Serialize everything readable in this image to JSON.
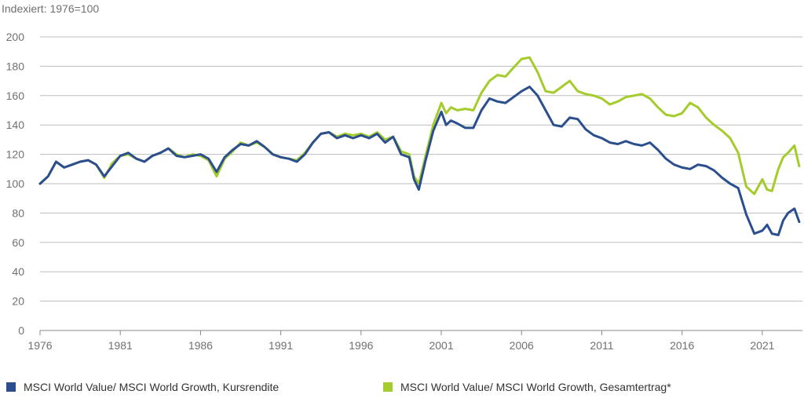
{
  "chart_data": {
    "type": "line",
    "title": "",
    "ylabel": "Indexiert: 1976=100",
    "xlabel": "",
    "ylim": [
      0,
      200
    ],
    "xlim": [
      1976,
      2023.5
    ],
    "y_ticks": [
      0,
      20,
      40,
      60,
      80,
      100,
      120,
      140,
      160,
      180,
      200
    ],
    "x_ticks": [
      1976,
      1981,
      1986,
      1991,
      1996,
      2001,
      2006,
      2011,
      2016,
      2021
    ],
    "grid": "horizontal",
    "legend_position": "bottom",
    "series": [
      {
        "name": "MSCI World Value/ MSCI World Growth, Kursrendite",
        "color": "#2b4f8e",
        "x": [
          1976,
          1976.5,
          1977,
          1977.5,
          1978,
          1978.5,
          1979,
          1979.5,
          1980,
          1980.5,
          1981,
          1981.5,
          1982,
          1982.5,
          1983,
          1983.5,
          1984,
          1984.5,
          1985,
          1985.5,
          1986,
          1986.5,
          1987,
          1987.5,
          1988,
          1988.5,
          1989,
          1989.5,
          1990,
          1990.5,
          1991,
          1991.5,
          1992,
          1992.5,
          1993,
          1993.5,
          1994,
          1994.5,
          1995,
          1995.5,
          1996,
          1996.5,
          1997,
          1997.5,
          1998,
          1998.5,
          1999,
          1999.3,
          1999.6,
          2000,
          2000.5,
          2001,
          2001.3,
          2001.6,
          2002,
          2002.5,
          2003,
          2003.5,
          2004,
          2004.5,
          2005,
          2005.5,
          2006,
          2006.5,
          2007,
          2007.5,
          2008,
          2008.5,
          2009,
          2009.5,
          2010,
          2010.5,
          2011,
          2011.5,
          2012,
          2012.5,
          2013,
          2013.5,
          2014,
          2014.5,
          2015,
          2015.5,
          2016,
          2016.5,
          2017,
          2017.5,
          2018,
          2018.5,
          2019,
          2019.5,
          2020,
          2020.5,
          2021,
          2021.3,
          2021.6,
          2022,
          2022.3,
          2022.6,
          2023,
          2023.3
        ],
        "y": [
          100,
          105,
          115,
          111,
          113,
          115,
          116,
          113,
          105,
          112,
          119,
          121,
          117,
          115,
          119,
          121,
          124,
          119,
          118,
          119,
          120,
          117,
          108,
          118,
          123,
          127,
          126,
          129,
          125,
          120,
          118,
          117,
          115,
          120,
          128,
          134,
          135,
          131,
          133,
          131,
          133,
          131,
          134,
          128,
          132,
          120,
          118,
          103,
          96,
          115,
          136,
          149,
          140,
          143,
          141,
          138,
          138,
          150,
          158,
          156,
          155,
          159,
          163,
          166,
          160,
          150,
          140,
          139,
          145,
          144,
          137,
          133,
          131,
          128,
          127,
          129,
          127,
          126,
          128,
          123,
          117,
          113,
          111,
          110,
          113,
          112,
          109,
          104,
          100,
          97,
          79,
          66,
          68,
          72,
          66,
          65,
          75,
          80,
          83,
          74
        ]
      },
      {
        "name": "MSCI World Value/ MSCI World Growth, Gesamtertrag*",
        "color": "#a4cc2c",
        "x": [
          1976,
          1976.5,
          1977,
          1977.5,
          1978,
          1978.5,
          1979,
          1979.5,
          1980,
          1980.5,
          1981,
          1981.5,
          1982,
          1982.5,
          1983,
          1983.5,
          1984,
          1984.5,
          1985,
          1985.5,
          1986,
          1986.5,
          1987,
          1987.5,
          1988,
          1988.5,
          1989,
          1989.5,
          1990,
          1990.5,
          1991,
          1991.5,
          1992,
          1992.5,
          1993,
          1993.5,
          1994,
          1994.5,
          1995,
          1995.5,
          1996,
          1996.5,
          1997,
          1997.5,
          1998,
          1998.5,
          1999,
          1999.3,
          1999.6,
          2000,
          2000.5,
          2001,
          2001.3,
          2001.6,
          2002,
          2002.5,
          2003,
          2003.5,
          2004,
          2004.5,
          2005,
          2005.5,
          2006,
          2006.5,
          2007,
          2007.5,
          2008,
          2008.5,
          2009,
          2009.5,
          2010,
          2010.5,
          2011,
          2011.5,
          2012,
          2012.5,
          2013,
          2013.5,
          2014,
          2014.5,
          2015,
          2015.5,
          2016,
          2016.5,
          2017,
          2017.5,
          2018,
          2018.5,
          2019,
          2019.5,
          2020,
          2020.5,
          2021,
          2021.3,
          2021.6,
          2022,
          2022.3,
          2022.6,
          2023,
          2023.3
        ],
        "y": [
          100,
          105,
          115,
          111,
          113,
          115,
          116,
          113,
          104,
          114,
          119,
          120,
          117,
          115,
          119,
          121,
          124,
          120,
          118,
          120,
          119,
          116,
          105,
          117,
          122,
          128,
          126,
          128,
          125,
          120,
          118,
          117,
          116,
          121,
          128,
          134,
          135,
          132,
          134,
          133,
          134,
          132,
          135,
          130,
          132,
          122,
          120,
          105,
          100,
          118,
          140,
          155,
          148,
          152,
          150,
          151,
          150,
          162,
          170,
          174,
          173,
          179,
          185,
          186,
          176,
          163,
          162,
          166,
          170,
          163,
          161,
          160,
          158,
          154,
          156,
          159,
          160,
          161,
          158,
          152,
          147,
          146,
          148,
          155,
          152,
          145,
          140,
          136,
          131,
          121,
          98,
          93,
          103,
          96,
          95,
          110,
          118,
          121,
          126,
          112
        ]
      }
    ]
  }
}
